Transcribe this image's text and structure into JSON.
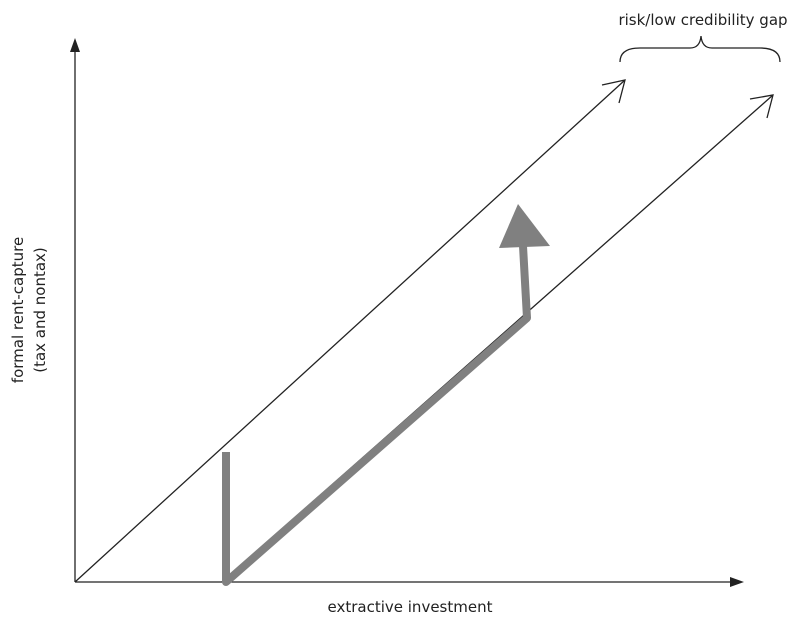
{
  "annotation": "risk/low credibility gap",
  "y_axis": {
    "label": "formal rent-capture",
    "sublabel": "(tax and nontax)"
  },
  "x_axis": {
    "label": "extractive investment"
  }
}
